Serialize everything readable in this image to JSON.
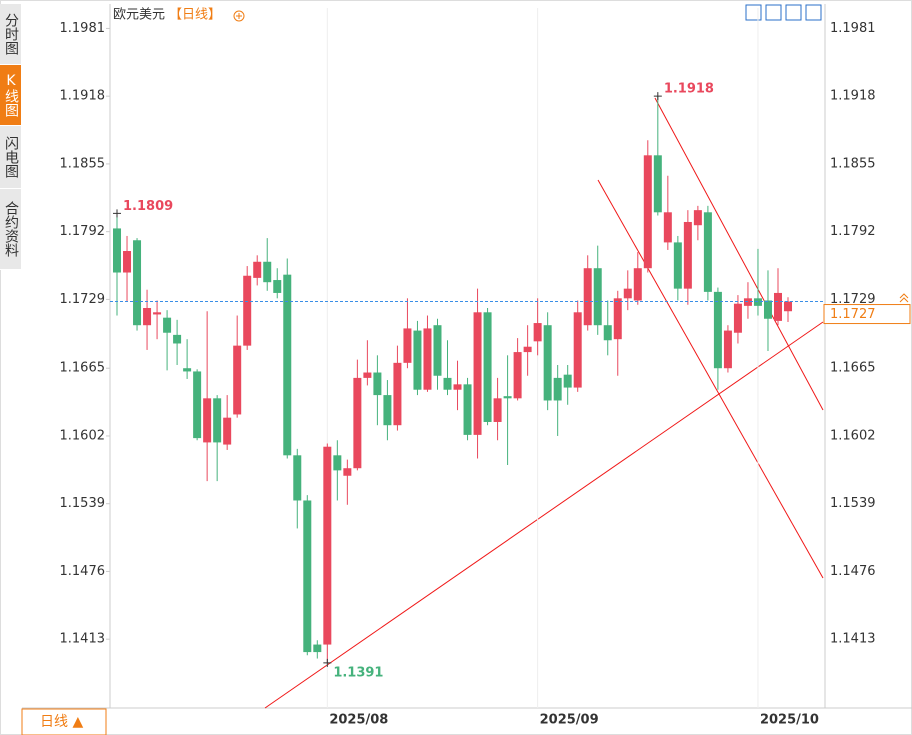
{
  "ui": {
    "tabs": [
      "分时图",
      "K线图",
      "闪电图",
      "合约资料"
    ],
    "period_button": "日线 ▲"
  },
  "chart_data": {
    "type": "candlestick",
    "title": "欧元美元",
    "subtitle": "【日线】",
    "categories": [
      null,
      null,
      null,
      null,
      null,
      null,
      null,
      null,
      null,
      null,
      null,
      null,
      null,
      null,
      null,
      null,
      null,
      null,
      null,
      null,
      null,
      "2025/08",
      null,
      null,
      null,
      null,
      null,
      null,
      null,
      null,
      null,
      null,
      null,
      null,
      null,
      null,
      null,
      null,
      null,
      null,
      null,
      null,
      "2025/09",
      null,
      null,
      null,
      null,
      null,
      null,
      null,
      null,
      null,
      null,
      null,
      null,
      null,
      null,
      null,
      null,
      null,
      null,
      null,
      null,
      null,
      "2025/10",
      null,
      null,
      null
    ],
    "open": [
      1.1795,
      1.1754,
      1.1784,
      1.1705,
      1.1715,
      1.1712,
      1.1696,
      1.1665,
      1.1662,
      1.1596,
      1.1637,
      1.1594,
      1.1622,
      1.1686,
      1.1749,
      1.1764,
      1.1747,
      1.1752,
      1.1584,
      1.1542,
      1.1408,
      1.1408,
      1.1584,
      1.1565,
      1.1572,
      1.1656,
      1.1661,
      1.164,
      1.1612,
      1.167,
      1.17,
      1.1645,
      1.1705,
      1.1656,
      1.1645,
      1.165,
      1.1603,
      1.1717,
      1.1615,
      1.1639,
      1.1637,
      1.168,
      1.169,
      1.1705,
      1.1656,
      1.1659,
      1.1647,
      1.1705,
      1.1758,
      1.1705,
      1.1692,
      1.173,
      1.1728,
      1.1758,
      1.1863,
      1.1782,
      1.1782,
      1.1739,
      1.1798,
      1.181,
      1.1736,
      1.1665,
      1.1698,
      1.1723,
      1.173,
      1.1728,
      1.1709,
      1.1718
    ],
    "high": [
      1.1809,
      1.1788,
      1.1786,
      1.1738,
      1.1728,
      1.1719,
      1.171,
      1.1692,
      1.1664,
      1.1718,
      1.164,
      1.164,
      1.1714,
      1.176,
      1.177,
      1.1786,
      1.1758,
      1.1767,
      1.159,
      1.1547,
      1.1412,
      1.1595,
      1.1598,
      1.158,
      1.1673,
      1.1691,
      1.1677,
      1.1654,
      1.1686,
      1.173,
      1.1709,
      1.1714,
      1.1711,
      1.1691,
      1.1672,
      1.1656,
      1.1739,
      1.1721,
      1.1656,
      1.1677,
      1.1693,
      1.1705,
      1.173,
      1.1717,
      1.1668,
      1.1668,
      1.1728,
      1.177,
      1.1779,
      1.1728,
      1.1737,
      1.1756,
      1.1773,
      1.1877,
      1.1918,
      1.1844,
      1.1788,
      1.1812,
      1.1816,
      1.1816,
      1.174,
      1.1705,
      1.1733,
      1.1745,
      1.1776,
      1.1756,
      1.1758,
      1.1731
    ],
    "low": [
      1.1714,
      1.1727,
      1.17,
      1.1682,
      1.1692,
      1.1663,
      1.1668,
      1.1655,
      1.1598,
      1.156,
      1.156,
      1.1589,
      1.1619,
      1.1682,
      1.1742,
      1.1737,
      1.173,
      1.1581,
      1.1516,
      1.1398,
      1.1395,
      1.1391,
      1.1542,
      1.1538,
      1.157,
      1.1649,
      1.1612,
      1.1598,
      1.1607,
      1.1665,
      1.164,
      1.1643,
      1.1645,
      1.164,
      1.1626,
      1.1598,
      1.1581,
      1.1612,
      1.1598,
      1.1575,
      1.1635,
      1.1658,
      1.1677,
      1.1626,
      1.1602,
      1.1631,
      1.1643,
      1.17,
      1.1696,
      1.1677,
      1.1658,
      1.1719,
      1.1724,
      1.1754,
      1.1807,
      1.1775,
      1.1728,
      1.1724,
      1.1784,
      1.1728,
      1.1645,
      1.1661,
      1.1688,
      1.1711,
      1.1714,
      1.1681,
      1.1705,
      1.1708
    ],
    "close": [
      1.1754,
      1.1774,
      1.1705,
      1.1721,
      1.1717,
      1.1698,
      1.1688,
      1.1662,
      1.16,
      1.1637,
      1.1596,
      1.1619,
      1.1686,
      1.1751,
      1.1764,
      1.1745,
      1.1735,
      1.1584,
      1.1542,
      1.1401,
      1.1401,
      1.1592,
      1.157,
      1.1572,
      1.1656,
      1.1661,
      1.164,
      1.1612,
      1.167,
      1.1702,
      1.1645,
      1.1702,
      1.1658,
      1.1645,
      1.165,
      1.1603,
      1.1717,
      1.1615,
      1.1637,
      1.1637,
      1.168,
      1.1685,
      1.1707,
      1.1635,
      1.1635,
      1.1647,
      1.1717,
      1.1758,
      1.1705,
      1.1691,
      1.173,
      1.1739,
      1.1758,
      1.1863,
      1.181,
      1.181,
      1.1739,
      1.1801,
      1.1812,
      1.1736,
      1.1665,
      1.17,
      1.1725,
      1.173,
      1.1723,
      1.1711,
      1.1735,
      1.1727
    ],
    "up_color": "#e9485d",
    "down_color": "#45b27c",
    "high_labels": [
      1.1809,
      1.1918
    ],
    "low_labels": [
      1.1391
    ],
    "last_price": 1.1727,
    "ylim": [
      1.1349,
      1.2
    ],
    "yticks": [
      1.1981,
      1.1918,
      1.1855,
      1.1792,
      1.1729,
      1.1665,
      1.1602,
      1.1539,
      1.1476,
      1.1413
    ]
  }
}
